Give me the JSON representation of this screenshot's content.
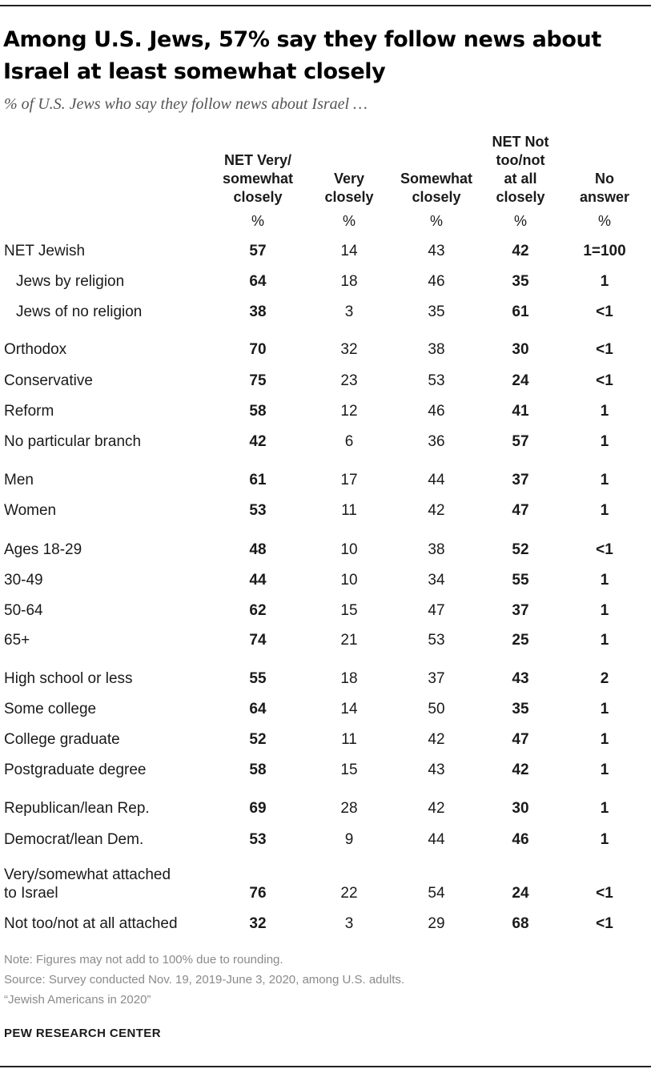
{
  "title": "Among U.S. Jews, 57% say they follow news about Israel at least somewhat closely",
  "subtitle": "% of U.S. Jews who say they follow news about Israel …",
  "columns": [
    {
      "header": [
        "NET Very/",
        "somewhat",
        "closely"
      ],
      "unit": "%"
    },
    {
      "header": [
        "Very",
        "closely"
      ],
      "unit": "%"
    },
    {
      "header": [
        "Somewhat",
        "closely"
      ],
      "unit": "%"
    },
    {
      "header": [
        "NET Not",
        "too/not",
        "at all",
        "closely"
      ],
      "unit": "%"
    },
    {
      "header": [
        "No answer"
      ],
      "unit": "%"
    }
  ],
  "rows": [
    {
      "label": [
        "NET Jewish"
      ],
      "values": [
        "57",
        "14",
        "43",
        "42",
        "1=100"
      ]
    },
    {
      "label": [
        "Jews by religion"
      ],
      "values": [
        "64",
        "18",
        "46",
        "35",
        "1"
      ]
    },
    {
      "label": [
        "Jews of no religion"
      ],
      "values": [
        "38",
        "3",
        "35",
        "61",
        "<1"
      ]
    },
    {
      "label": [
        "Orthodox"
      ],
      "values": [
        "70",
        "32",
        "38",
        "30",
        "<1"
      ]
    },
    {
      "label": [
        "Conservative"
      ],
      "values": [
        "75",
        "23",
        "53",
        "24",
        "<1"
      ]
    },
    {
      "label": [
        "Reform"
      ],
      "values": [
        "58",
        "12",
        "46",
        "41",
        "1"
      ]
    },
    {
      "label": [
        "No particular branch"
      ],
      "values": [
        "42",
        "6",
        "36",
        "57",
        "1"
      ]
    },
    {
      "label": [
        "Men"
      ],
      "values": [
        "61",
        "17",
        "44",
        "37",
        "1"
      ]
    },
    {
      "label": [
        "Women"
      ],
      "values": [
        "53",
        "11",
        "42",
        "47",
        "1"
      ]
    },
    {
      "label": [
        "Ages 18-29"
      ],
      "values": [
        "48",
        "10",
        "38",
        "52",
        "<1"
      ]
    },
    {
      "label": [
        "30-49"
      ],
      "values": [
        "44",
        "10",
        "34",
        "55",
        "1"
      ]
    },
    {
      "label": [
        "50-64"
      ],
      "values": [
        "62",
        "15",
        "47",
        "37",
        "1"
      ]
    },
    {
      "label": [
        "65+"
      ],
      "values": [
        "74",
        "21",
        "53",
        "25",
        "1"
      ]
    },
    {
      "label": [
        "High school or less"
      ],
      "values": [
        "55",
        "18",
        "37",
        "43",
        "2"
      ]
    },
    {
      "label": [
        "Some college"
      ],
      "values": [
        "64",
        "14",
        "50",
        "35",
        "1"
      ]
    },
    {
      "label": [
        "College graduate"
      ],
      "values": [
        "52",
        "11",
        "42",
        "47",
        "1"
      ]
    },
    {
      "label": [
        "Postgraduate degree"
      ],
      "values": [
        "58",
        "15",
        "43",
        "42",
        "1"
      ]
    },
    {
      "label": [
        "Republican/lean Rep."
      ],
      "values": [
        "69",
        "28",
        "42",
        "30",
        "1"
      ]
    },
    {
      "label": [
        "Democrat/lean Dem."
      ],
      "values": [
        "53",
        "9",
        "44",
        "46",
        "1"
      ]
    },
    {
      "label": [
        "Very/somewhat attached",
        "to Israel"
      ],
      "values": [
        "76",
        "22",
        "54",
        "24",
        "<1"
      ]
    },
    {
      "label": [
        "Not too/not at all attached"
      ],
      "values": [
        "32",
        "3",
        "29",
        "68",
        "<1"
      ]
    }
  ],
  "notes": [
    "Note: Figures may not add to 100% due to rounding.",
    "Source: Survey conducted Nov. 19, 2019-June 3, 2020, among U.S. adults.",
    "“Jewish Americans in 2020”"
  ],
  "brand": "PEW RESEARCH CENTER",
  "chart_data": {
    "type": "table",
    "title": "Among U.S. Jews, 57% say they follow news about Israel at least somewhat closely",
    "subtitle": "% of U.S. Jews who say they follow news about Israel …",
    "columns": [
      "NET Very/somewhat closely",
      "Very closely",
      "Somewhat closely",
      "NET Not too/not at all closely",
      "No answer"
    ],
    "bold_columns": [
      "NET Very/somewhat closely",
      "NET Not too/not at all closely",
      "No answer"
    ],
    "rows": [
      [
        "NET Jewish",
        57,
        14,
        43,
        42,
        "1=100"
      ],
      [
        "Jews by religion",
        64,
        18,
        46,
        35,
        "1"
      ],
      [
        "Jews of no religion",
        38,
        3,
        35,
        61,
        "<1"
      ],
      [
        "Orthodox",
        70,
        32,
        38,
        30,
        "<1"
      ],
      [
        "Conservative",
        75,
        23,
        53,
        24,
        "<1"
      ],
      [
        "Reform",
        58,
        12,
        46,
        41,
        "1"
      ],
      [
        "No particular branch",
        42,
        6,
        36,
        57,
        "1"
      ],
      [
        "Men",
        61,
        17,
        44,
        37,
        "1"
      ],
      [
        "Women",
        53,
        11,
        42,
        47,
        "1"
      ],
      [
        "Ages 18-29",
        48,
        10,
        38,
        52,
        "<1"
      ],
      [
        "30-49",
        44,
        10,
        34,
        55,
        "1"
      ],
      [
        "50-64",
        62,
        15,
        47,
        37,
        "1"
      ],
      [
        "65+",
        74,
        21,
        53,
        25,
        "1"
      ],
      [
        "High school or less",
        55,
        18,
        37,
        43,
        "2"
      ],
      [
        "Some college",
        64,
        14,
        50,
        35,
        "1"
      ],
      [
        "College graduate",
        52,
        11,
        42,
        47,
        "1"
      ],
      [
        "Postgraduate degree",
        58,
        15,
        43,
        42,
        "1"
      ],
      [
        "Republican/lean Rep.",
        69,
        28,
        42,
        30,
        "1"
      ],
      [
        "Democrat/lean Dem.",
        53,
        9,
        44,
        46,
        "1"
      ],
      [
        "Very/somewhat attached to Israel",
        76,
        22,
        54,
        24,
        "<1"
      ],
      [
        "Not too/not at all attached",
        32,
        3,
        29,
        68,
        "<1"
      ]
    ]
  }
}
